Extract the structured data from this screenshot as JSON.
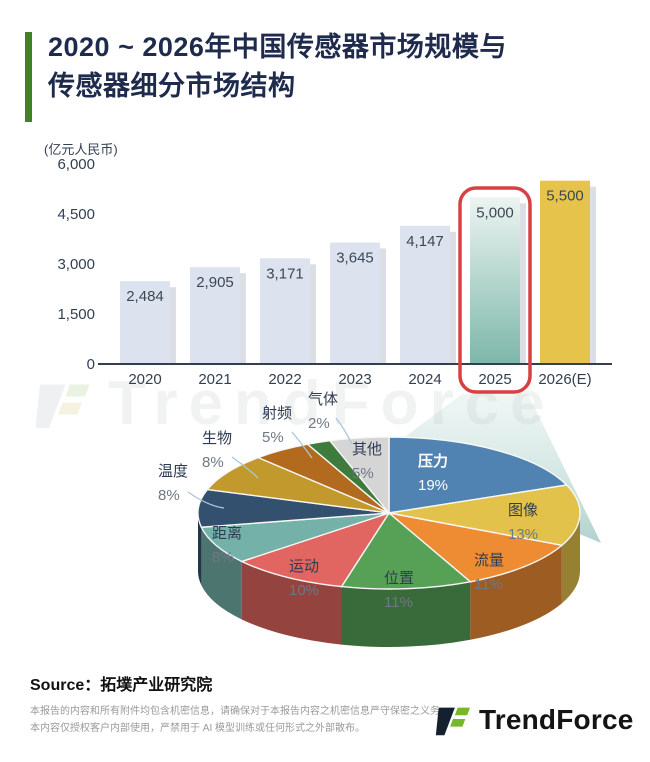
{
  "header": {
    "title_line1": "2020 ~ 2026年中国传感器市场规模与",
    "title_line2": "传感器细分市场结构"
  },
  "watermark": {
    "text": "TrendForce"
  },
  "chart_data": [
    {
      "type": "bar",
      "unit_label": "(亿元人民币)",
      "categories": [
        "2020",
        "2021",
        "2022",
        "2023",
        "2024",
        "2025",
        "2026(E)"
      ],
      "values": [
        2484,
        2905,
        3171,
        3645,
        4147,
        5000,
        5500
      ],
      "value_labels": [
        "2,484",
        "2,905",
        "3,171",
        "3,645",
        "4,147",
        "5,000",
        "5,500"
      ],
      "ylim": [
        0,
        6000
      ],
      "yticks": [
        {
          "label": "6,000",
          "value": 6000
        },
        {
          "label": "4,500",
          "value": 4500
        },
        {
          "label": "3,000",
          "value": 3000
        },
        {
          "label": "1,500",
          "value": 1500
        },
        {
          "label": "0",
          "value": 0
        }
      ],
      "grid": false,
      "highlight_index": 5,
      "forecast_index": 6
    },
    {
      "type": "pie",
      "direction": "clockwise",
      "start_angle_deg": 0,
      "slices": [
        {
          "label": "压力",
          "pct": 19,
          "pct_label": "19%",
          "color": "#5083b2"
        },
        {
          "label": "图像",
          "pct": 13,
          "pct_label": "13%",
          "color": "#e3c24b"
        },
        {
          "label": "流量",
          "pct": 11,
          "pct_label": "11%",
          "color": "#ee8c33"
        },
        {
          "label": "位置",
          "pct": 11,
          "pct_label": "11%",
          "color": "#57a157"
        },
        {
          "label": "运动",
          "pct": 10,
          "pct_label": "10%",
          "color": "#e16560"
        },
        {
          "label": "距离",
          "pct": 8,
          "pct_label": "8%",
          "color": "#74b1a9"
        },
        {
          "label": "温度",
          "pct": 8,
          "pct_label": "8%",
          "color": "#33506e"
        },
        {
          "label": "生物",
          "pct": 8,
          "pct_label": "8%",
          "color": "#c1992c"
        },
        {
          "label": "射频",
          "pct": 5,
          "pct_label": "5%",
          "color": "#b16a1e"
        },
        {
          "label": "气体",
          "pct": 2,
          "pct_label": "2%",
          "color": "#3e7b3c"
        },
        {
          "label": "其他",
          "pct": 5,
          "pct_label": "5%",
          "color": "#d5d5d5"
        }
      ]
    }
  ],
  "colors": {
    "accent_green": "#42812a",
    "title_navy": "#1f2b4d",
    "axis": "#333f50",
    "bar_default": "#dce3ee",
    "bar_shadow": "rgba(90,105,135,0.22)",
    "bar_highlight_top": "#ecf4f1",
    "bar_highlight_bottom": "#7db7a9",
    "bar_forecast": "#e6c44c",
    "highlight_outline": "#d84043",
    "beam_top": "rgba(183,216,209,0.22)",
    "beam_bottom": "rgba(127,181,172,0.60)",
    "pie_label_dark": "#2e3c52",
    "pie_pct_gray": "#6e7884",
    "leader_line": "#aac4dc"
  },
  "footer": {
    "source_label": "Source",
    "source_value": "：拓墣产业研究院",
    "disclaimer_line1": "本报告的内容和所有附件均包含机密信息，请确保对于本报告内容之机密信息严守保密之义务。",
    "disclaimer_line2": "本内容仅授权客户内部使用，严禁用于 AI 模型训练或任何形式之外部散布。",
    "brand": "TrendForce"
  }
}
